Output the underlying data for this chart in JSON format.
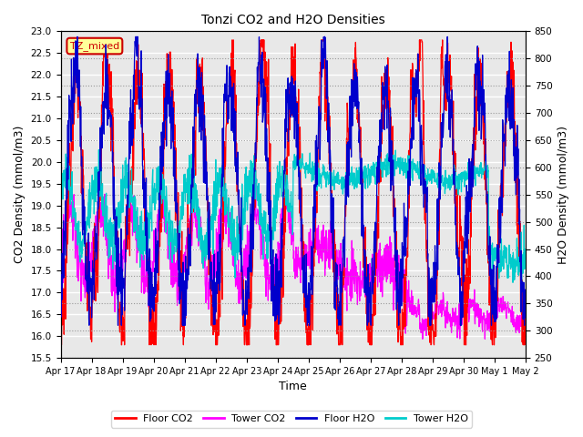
{
  "title": "Tonzi CO2 and H2O Densities",
  "xlabel": "Time",
  "ylabel_left": "CO2 Density (mmol/m3)",
  "ylabel_right": "H2O Density (mmol/m3)",
  "ylim_left": [
    15.5,
    23.0
  ],
  "ylim_right": [
    250,
    850
  ],
  "yticks_left": [
    15.5,
    16.0,
    16.5,
    17.0,
    17.5,
    18.0,
    18.5,
    19.0,
    19.5,
    20.0,
    20.5,
    21.0,
    21.5,
    22.0,
    22.5,
    23.0
  ],
  "yticks_right": [
    250,
    300,
    350,
    400,
    450,
    500,
    550,
    600,
    650,
    700,
    750,
    800,
    850
  ],
  "xtick_labels": [
    "Apr 17",
    "Apr 18",
    "Apr 19",
    "Apr 20",
    "Apr 21",
    "Apr 22",
    "Apr 23",
    "Apr 24",
    "Apr 25",
    "Apr 26",
    "Apr 27",
    "Apr 28",
    "Apr 29",
    "Apr 30",
    "May 1",
    "May 2"
  ],
  "colors": {
    "floor_co2": "#FF0000",
    "tower_co2": "#FF00FF",
    "floor_h2o": "#0000CC",
    "tower_h2o": "#00CCCC"
  },
  "annotation_text": "TZ_mixed",
  "annotation_bg": "#FFFF99",
  "annotation_edge": "#CC0000",
  "annotation_color": "#CC0000",
  "bg_color": "#E8E8E8",
  "grid_left_color": "#FFFFFF",
  "grid_right_color": "#999999",
  "linewidth": 0.9,
  "n_points": 1500,
  "seed": 12345
}
